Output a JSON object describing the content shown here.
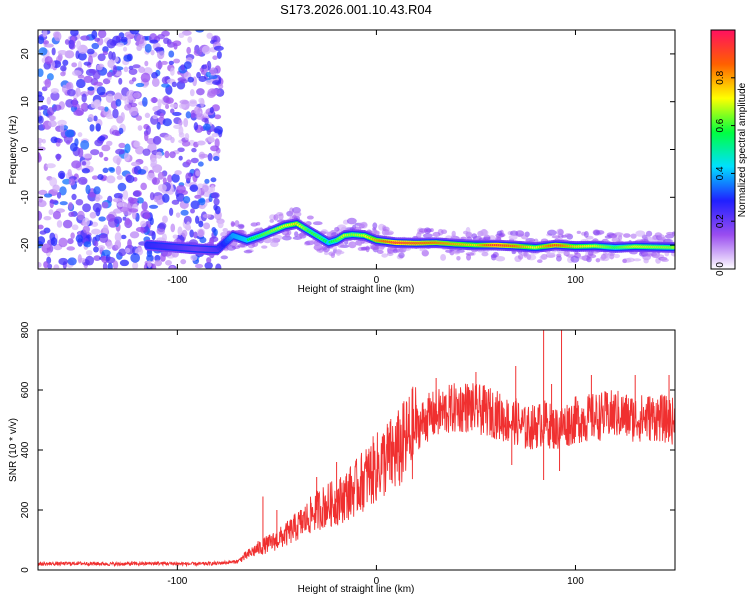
{
  "chart_data": [
    {
      "type": "heatmap",
      "title": "S173.2026.001.10.43.R04",
      "xlabel": "Height of straight line (km)",
      "ylabel": "Frequency (Hz)",
      "xlim": [
        -170,
        150
      ],
      "ylim": [
        -25,
        25
      ],
      "xticks": [
        -100,
        0,
        100
      ],
      "yticks": [
        -20,
        -10,
        0,
        10,
        20
      ],
      "colorbar": {
        "label": "Normalized spectral amplitude",
        "range": [
          0.0,
          1.0
        ],
        "ticks": [
          0.0,
          0.2,
          0.4,
          0.6,
          0.8
        ],
        "tick_labels": [
          "0.0",
          "0.2",
          "0.4",
          "0.6",
          "0.8"
        ],
        "colors": [
          "#ffffff",
          "#9a4df0",
          "#2020ff",
          "#00e0ff",
          "#00ff40",
          "#ffff00",
          "#ff6000",
          "#ff1060"
        ]
      },
      "ridge": {
        "x": [
          -115,
          -100,
          -90,
          -80,
          -72,
          -65,
          -58,
          -52,
          -46,
          -40,
          -34,
          -28,
          -24,
          -20,
          -16,
          -12,
          -6,
          0,
          10,
          20,
          30,
          40,
          50,
          60,
          70,
          80,
          90,
          100,
          110,
          120,
          130,
          150
        ],
        "freq": [
          -20.0,
          -20.5,
          -20.8,
          -21.0,
          -18.0,
          -19.0,
          -18.0,
          -17.0,
          -16.0,
          -15.5,
          -17.0,
          -18.5,
          -19.5,
          -19.0,
          -18.0,
          -17.8,
          -18.0,
          -19.0,
          -19.5,
          -19.6,
          -19.5,
          -19.8,
          -20.0,
          -20.0,
          -20.2,
          -20.5,
          -20.0,
          -20.3,
          -20.2,
          -20.5,
          -20.3,
          -20.5
        ],
        "amplitude": [
          0.35,
          0.3,
          0.25,
          0.3,
          0.5,
          0.55,
          0.6,
          0.65,
          0.7,
          0.75,
          0.6,
          0.6,
          0.55,
          0.6,
          0.7,
          0.65,
          0.7,
          0.8,
          0.95,
          0.9,
          0.85,
          0.8,
          0.75,
          0.95,
          0.85,
          0.7,
          0.9,
          0.75,
          0.7,
          0.6,
          0.7,
          0.65
        ]
      },
      "noise_region_x": [
        -170,
        -78
      ]
    },
    {
      "type": "line",
      "xlabel": "Height of straight line (km)",
      "ylabel": "SNR (10 * v/v)",
      "xlim": [
        -170,
        150
      ],
      "ylim": [
        0,
        800
      ],
      "xticks": [
        -100,
        0,
        100
      ],
      "yticks": [
        0,
        200,
        400,
        600,
        800
      ],
      "color": "#f03030",
      "series": [
        {
          "name": "SNR",
          "x": [
            -170,
            -150,
            -130,
            -110,
            -90,
            -80,
            -70,
            -66,
            -60,
            -55,
            -50,
            -45,
            -40,
            -35,
            -30,
            -25,
            -20,
            -15,
            -10,
            -5,
            0,
            5,
            10,
            15,
            20,
            25,
            30,
            35,
            40,
            45,
            50,
            55,
            60,
            65,
            70,
            75,
            80,
            85,
            90,
            95,
            100,
            110,
            120,
            130,
            140,
            150
          ],
          "y": [
            20,
            22,
            20,
            22,
            20,
            22,
            28,
            45,
            70,
            85,
            100,
            120,
            145,
            170,
            200,
            215,
            225,
            250,
            275,
            310,
            340,
            370,
            390,
            430,
            470,
            505,
            520,
            530,
            540,
            545,
            535,
            530,
            520,
            500,
            495,
            470,
            480,
            490,
            470,
            485,
            500,
            510,
            520,
            505,
            510,
            495
          ]
        }
      ],
      "spikes": [
        {
          "x": -57,
          "y": 245
        },
        {
          "x": -50,
          "y": 200
        },
        {
          "x": -30,
          "y": 310
        },
        {
          "x": -20,
          "y": 360
        },
        {
          "x": 20,
          "y": 550
        },
        {
          "x": 30,
          "y": 640
        },
        {
          "x": 50,
          "y": 660
        },
        {
          "x": 70,
          "y": 680
        },
        {
          "x": 84,
          "y": 800
        },
        {
          "x": 88,
          "y": 620
        },
        {
          "x": 93,
          "y": 800
        },
        {
          "x": 108,
          "y": 650
        },
        {
          "x": 130,
          "y": 650
        },
        {
          "x": 147,
          "y": 650
        }
      ],
      "dips": [
        {
          "x": 68,
          "y": 350
        },
        {
          "x": 84,
          "y": 300
        },
        {
          "x": 92,
          "y": 330
        }
      ]
    }
  ]
}
